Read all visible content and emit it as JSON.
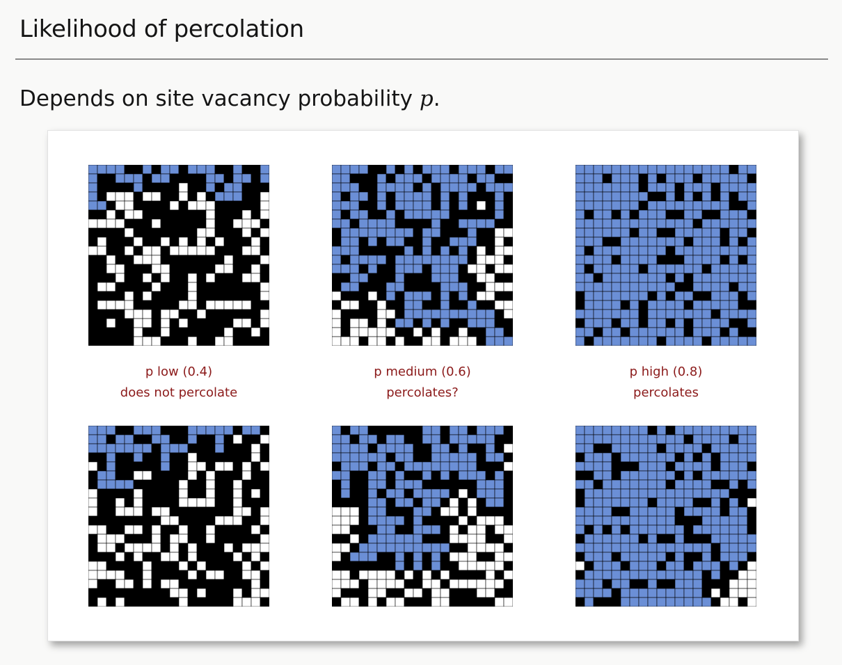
{
  "slide": {
    "title": "Likelihood of percolation",
    "subtitle_prefix": "Depends on site vacancy probability ",
    "subtitle_var": "p",
    "subtitle_suffix": "."
  },
  "colors": {
    "blocked": "#000000",
    "open": "#ffffff",
    "full": "#6b8fd6",
    "gridline": "#000000",
    "caption": "#8b1a1a"
  },
  "grid_size": 20,
  "columns": [
    {
      "p_label": "p low (0.4)",
      "outcome": "does not percolate",
      "p": 0.4
    },
    {
      "p_label": "p medium (0.6)",
      "outcome": "percolates?",
      "p": 0.6
    },
    {
      "p_label": "p high (0.8)",
      "outcome": "percolates",
      "p": 0.8
    }
  ]
}
